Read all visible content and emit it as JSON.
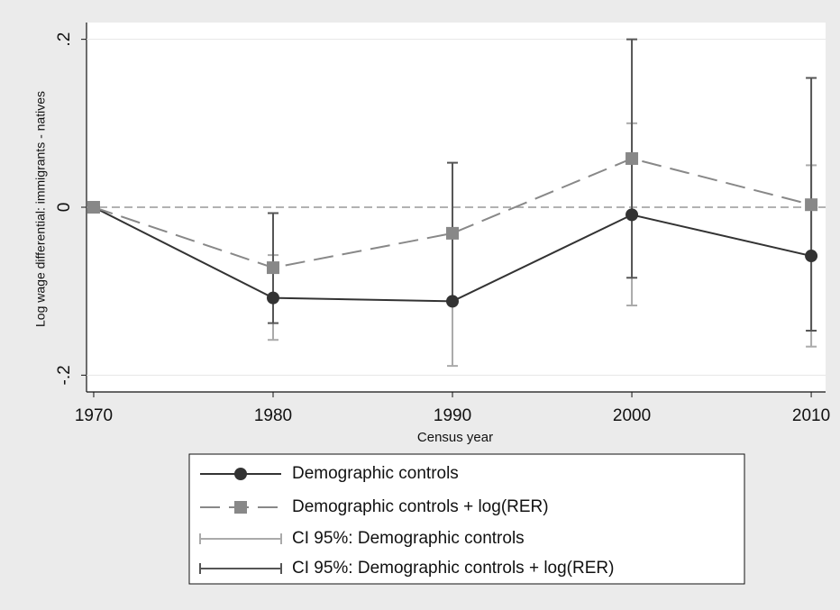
{
  "chart_data": {
    "type": "line",
    "x_label": "Census year",
    "y_label": "Log wage differential: immigrants - natives",
    "x": [
      1970,
      1980,
      1990,
      2000,
      2010
    ],
    "xlim": [
      1969.6,
      2010.8
    ],
    "xticks": [
      1970,
      1980,
      1990,
      2000,
      2010
    ],
    "ylim": [
      -0.22,
      0.22
    ],
    "yticks": [
      {
        "value": 0.2,
        "label": ".2"
      },
      0,
      {
        "value": -0.2,
        "label": "-.2"
      }
    ],
    "grid": true,
    "series": [
      {
        "name": "Demographic controls",
        "color": "#333333",
        "marker": "circle",
        "dash": false,
        "values": [
          0,
          -0.108,
          -0.112,
          -0.009,
          -0.058
        ]
      },
      {
        "name": "Demographic controls + log(RER)",
        "color": "#888888",
        "marker": "square",
        "dash": true,
        "values": [
          0,
          -0.072,
          -0.031,
          0.058,
          0.003
        ]
      },
      {
        "name": "CI 95%: Demographic controls",
        "color": "#aaaaaa",
        "low": [
          null,
          -0.158,
          -0.189,
          -0.117,
          -0.166
        ],
        "high": [
          null,
          -0.057,
          -0.035,
          0.1,
          0.05
        ]
      },
      {
        "name": "CI 95%: Demographic controls + log(RER)",
        "color": "#555555",
        "low": [
          null,
          -0.138,
          -0.115,
          -0.084,
          -0.147
        ],
        "high": [
          null,
          -0.007,
          0.053,
          0.2,
          0.154
        ]
      }
    ]
  }
}
